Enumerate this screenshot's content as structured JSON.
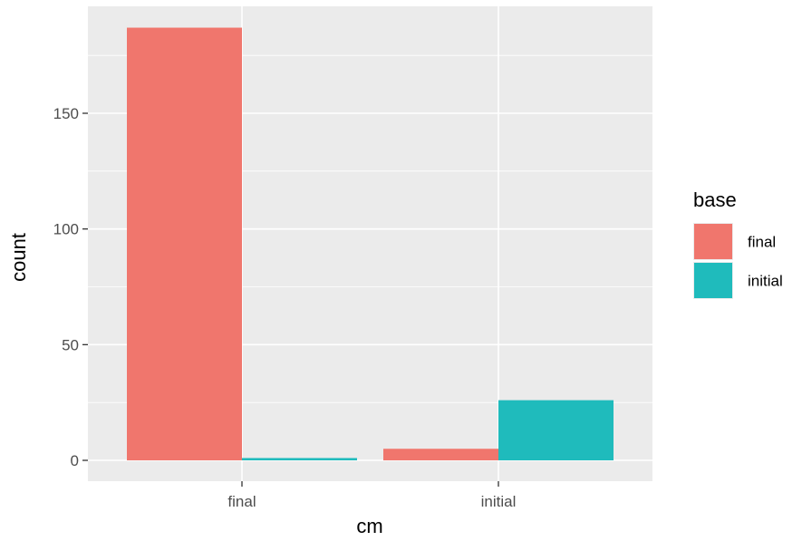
{
  "chart_data": {
    "type": "bar",
    "categories": [
      "final",
      "initial"
    ],
    "series": [
      {
        "name": "final",
        "values": [
          187,
          5
        ]
      },
      {
        "name": "initial",
        "values": [
          1,
          26
        ]
      }
    ],
    "xlabel": "cm",
    "ylabel": "count",
    "ylim": [
      0,
      195
    ],
    "yticks": [
      0,
      50,
      100,
      150
    ],
    "grid": true,
    "legend": {
      "title": "base",
      "position": "right",
      "entries": [
        "final",
        "initial"
      ]
    },
    "colors": {
      "final": "#f0766d",
      "initial": "#1fbbbc",
      "panel": "#ebebeb",
      "grid": "#ffffff"
    }
  }
}
